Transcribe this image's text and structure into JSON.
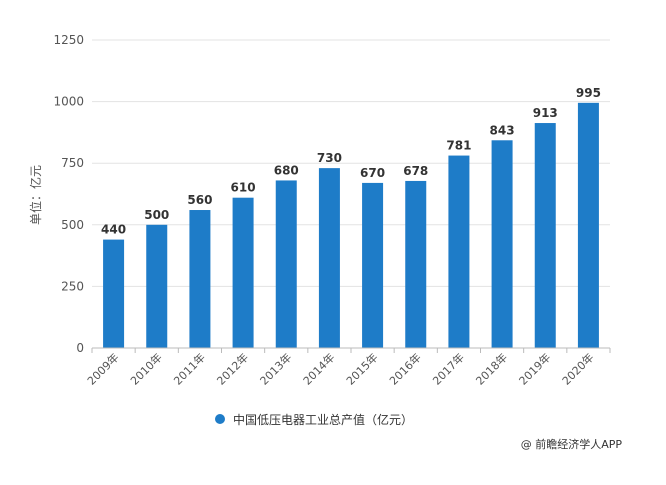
{
  "chart_data": {
    "type": "bar",
    "categories": [
      "2009年",
      "2010年",
      "2011年",
      "2012年",
      "2013年",
      "2014年",
      "2015年",
      "2016年",
      "2017年",
      "2018年",
      "2019年",
      "2020年"
    ],
    "series": [
      {
        "name": "中国低压电器工业总产值（亿元）",
        "values": [
          440,
          500,
          560,
          610,
          680,
          730,
          670,
          678,
          781,
          843,
          913,
          995
        ],
        "color": "#1e7cc8"
      }
    ],
    "ylabel": "单位：亿元",
    "ylim": [
      0,
      1250
    ],
    "yticks": [
      0,
      250,
      500,
      750,
      1000,
      1250
    ],
    "grid": true,
    "legend_position": "bottom"
  },
  "credit": "@ 前瞻经济学人APP"
}
